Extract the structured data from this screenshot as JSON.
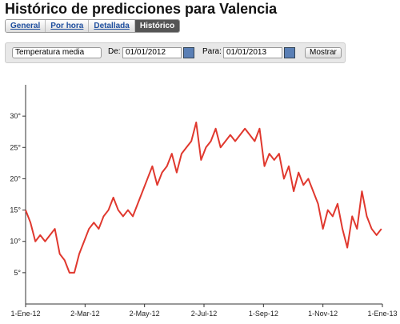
{
  "header": {
    "title": "Histórico de predicciones para Valencia"
  },
  "tabs": [
    "General",
    "Por hora",
    "Detallada",
    "Histórico"
  ],
  "controls": {
    "variable": "Temperatura media",
    "from_label": "De:",
    "from_date": "01/01/2012",
    "to_label": "Para:",
    "to_date": "01/01/2013",
    "button": "Mostrar"
  },
  "chart_data": {
    "type": "line",
    "x": [
      "2012-01-01",
      "2012-01-06",
      "2012-01-11",
      "2012-01-16",
      "2012-01-21",
      "2012-01-26",
      "2012-01-31",
      "2012-02-05",
      "2012-02-10",
      "2012-02-15",
      "2012-02-20",
      "2012-02-25",
      "2012-03-01",
      "2012-03-06",
      "2012-03-11",
      "2012-03-16",
      "2012-03-21",
      "2012-03-26",
      "2012-03-31",
      "2012-04-05",
      "2012-04-10",
      "2012-04-15",
      "2012-04-20",
      "2012-04-25",
      "2012-04-30",
      "2012-05-05",
      "2012-05-10",
      "2012-05-15",
      "2012-05-20",
      "2012-05-25",
      "2012-05-30",
      "2012-06-04",
      "2012-06-09",
      "2012-06-14",
      "2012-06-19",
      "2012-06-24",
      "2012-06-29",
      "2012-07-04",
      "2012-07-09",
      "2012-07-14",
      "2012-07-19",
      "2012-07-24",
      "2012-07-29",
      "2012-08-03",
      "2012-08-08",
      "2012-08-13",
      "2012-08-18",
      "2012-08-23",
      "2012-08-28",
      "2012-09-02",
      "2012-09-07",
      "2012-09-12",
      "2012-09-17",
      "2012-09-22",
      "2012-09-27",
      "2012-10-02",
      "2012-10-07",
      "2012-10-12",
      "2012-10-17",
      "2012-10-22",
      "2012-10-27",
      "2012-11-01",
      "2012-11-06",
      "2012-11-11",
      "2012-11-16",
      "2012-11-21",
      "2012-11-26",
      "2012-12-01",
      "2012-12-06",
      "2012-12-11",
      "2012-12-16",
      "2012-12-21",
      "2012-12-26",
      "2012-12-31"
    ],
    "series": [
      {
        "name": "Temperatura media",
        "color": "#e0382e",
        "values": [
          15,
          13,
          10,
          11,
          10,
          11,
          12,
          8,
          7,
          5,
          5,
          8,
          10,
          12,
          13,
          12,
          14,
          15,
          17,
          15,
          14,
          15,
          14,
          16,
          18,
          20,
          22,
          19,
          21,
          22,
          24,
          21,
          24,
          25,
          26,
          29,
          23,
          25,
          26,
          28,
          25,
          26,
          27,
          26,
          27,
          28,
          27,
          26,
          28,
          22,
          24,
          23,
          24,
          20,
          22,
          18,
          21,
          19,
          20,
          18,
          16,
          12,
          15,
          14,
          16,
          12,
          9,
          14,
          12,
          18,
          14,
          12,
          11,
          12
        ]
      }
    ],
    "xlim": [
      "2012-01-01",
      "2013-01-01"
    ],
    "xticks": [
      {
        "value": "2012-01-01",
        "label": "1-Ene-12"
      },
      {
        "value": "2012-03-02",
        "label": "2-Mar-12"
      },
      {
        "value": "2012-05-02",
        "label": "2-May-12"
      },
      {
        "value": "2012-07-02",
        "label": "2-Jul-12"
      },
      {
        "value": "2012-09-01",
        "label": "1-Sep-12"
      },
      {
        "value": "2012-11-01",
        "label": "1-Nov-12"
      },
      {
        "value": "2013-01-01",
        "label": "1-Ene-13"
      }
    ],
    "ylim": [
      0,
      35
    ],
    "yticks": [
      {
        "value": 5,
        "label": "5°"
      },
      {
        "value": 10,
        "label": "10°"
      },
      {
        "value": 15,
        "label": "15°"
      },
      {
        "value": 20,
        "label": "20°"
      },
      {
        "value": 25,
        "label": "25°"
      },
      {
        "value": 30,
        "label": "30°"
      }
    ]
  }
}
